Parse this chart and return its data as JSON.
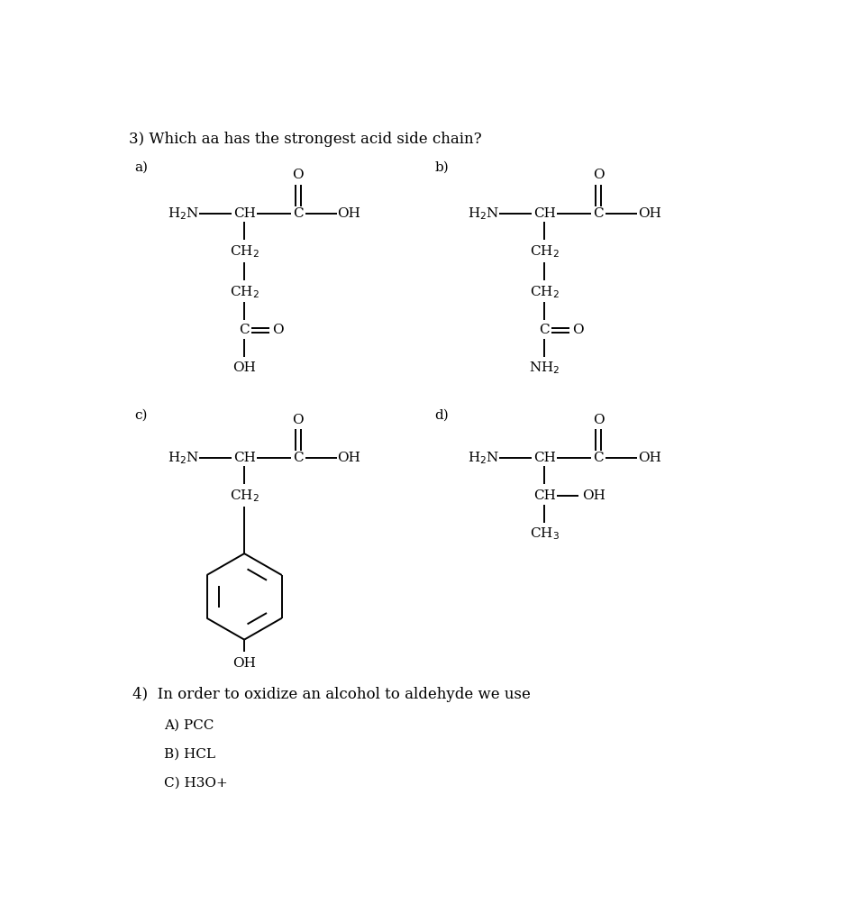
{
  "title": "3) Which aa has the strongest acid side chain?",
  "bg_color": "#ffffff",
  "text_color": "#000000",
  "title_fontsize": 12,
  "formula_fontsize": 11,
  "question2_title": "4)  In order to oxidize an alcohol to aldehyde we use",
  "answer_A": "A) PCC",
  "answer_B": "B) HCL",
  "answer_C": "C) H3O+"
}
